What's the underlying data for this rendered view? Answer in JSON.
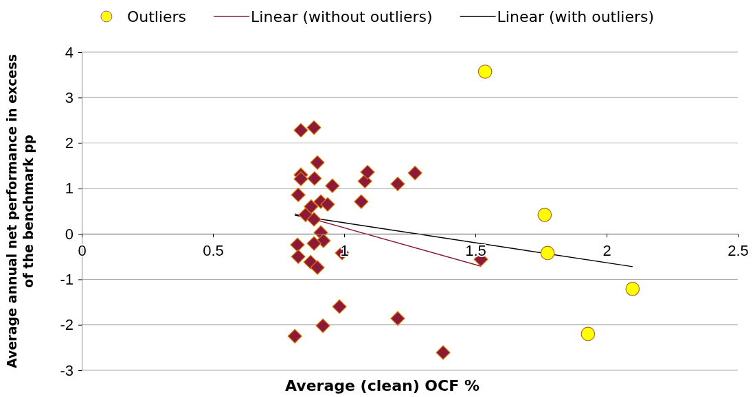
{
  "chart_data": {
    "type": "scatter",
    "xlabel": "Average (clean) OCF %",
    "ylabel": "Average annual net performance in excess of the benchmark pp",
    "xlim": [
      0,
      2.5
    ],
    "ylim": [
      -3,
      4
    ],
    "xticks": [
      0,
      0.5,
      1,
      1.5,
      2,
      2.5
    ],
    "yticks": [
      -3,
      -2,
      -1,
      0,
      1,
      2,
      3,
      4
    ],
    "grid": "y",
    "legend": "top",
    "series": [
      {
        "color": "#8b1a3a",
        "marker": "diamond",
        "x": [
          0.835,
          0.885,
          0.835,
          0.835,
          0.898,
          0.887,
          0.955,
          1.079,
          1.089,
          1.204,
          1.27,
          1.065,
          0.825,
          0.911,
          0.937,
          0.874,
          0.853,
          0.885,
          0.911,
          0.921,
          0.885,
          0.822,
          0.825,
          0.872,
          0.898,
          0.992,
          0.982,
          1.204,
          0.919,
          0.812,
          1.377,
          1.521
        ],
        "values": [
          2.28,
          2.34,
          1.3,
          1.21,
          1.57,
          1.22,
          1.06,
          1.16,
          1.36,
          1.1,
          1.34,
          0.71,
          0.86,
          0.71,
          0.65,
          0.6,
          0.42,
          0.32,
          0.03,
          -0.15,
          -0.21,
          -0.24,
          -0.5,
          -0.62,
          -0.74,
          -0.42,
          -1.6,
          -1.86,
          -2.02,
          -2.25,
          -2.61,
          -0.56
        ]
      },
      {
        "name": "Outliers",
        "color": "#ffff00",
        "marker": "circle",
        "x": [
          1.537,
          1.764,
          1.775,
          2.099,
          1.929
        ],
        "values": [
          3.57,
          0.42,
          -0.42,
          -1.21,
          -2.2
        ]
      },
      {
        "name": "Linear (without outliers)",
        "type": "line",
        "color": "#8b1a3a",
        "x": [
          0.812,
          1.521
        ],
        "values": [
          0.44,
          -0.71
        ]
      },
      {
        "name": "Linear (with outliers)",
        "type": "line",
        "color": "#000000",
        "x": [
          0.812,
          2.099
        ],
        "values": [
          0.41,
          -0.72
        ]
      }
    ]
  }
}
